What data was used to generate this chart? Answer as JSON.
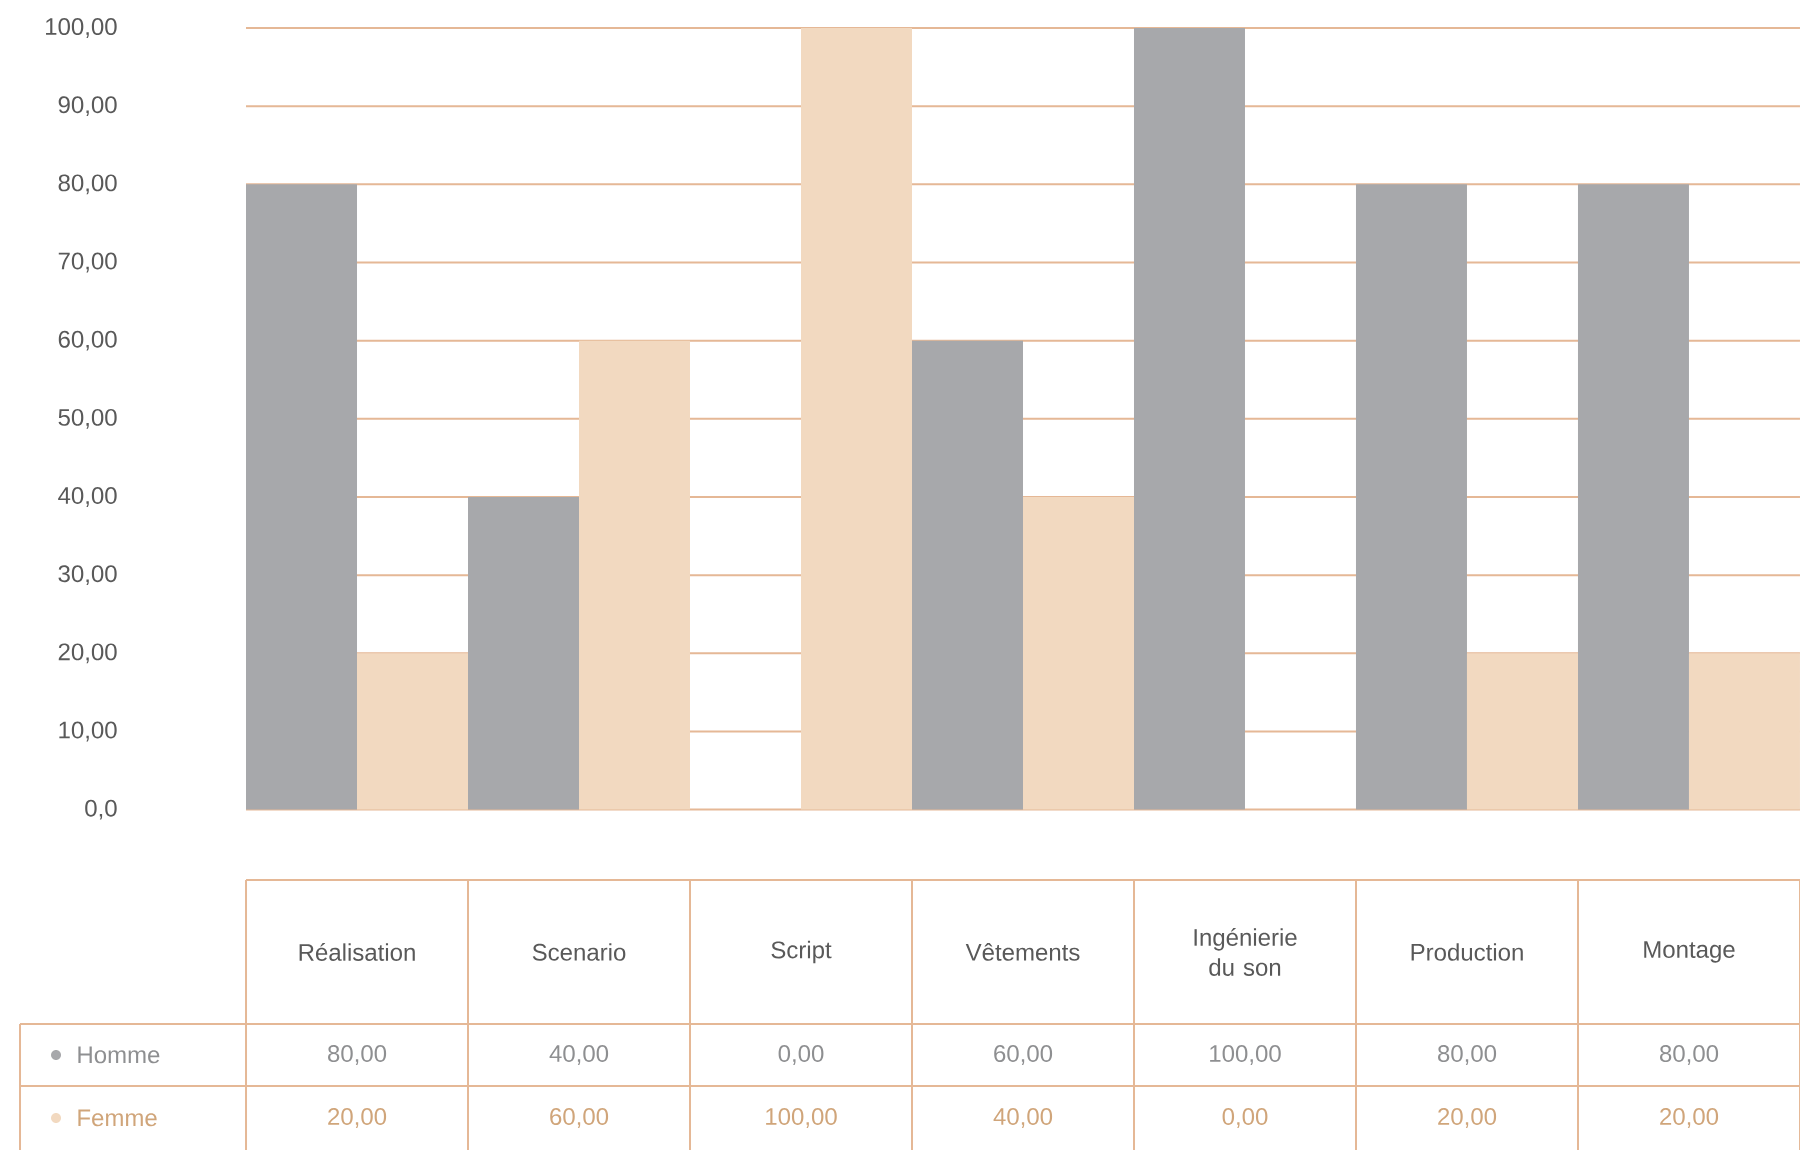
{
  "chart_data": {
    "type": "bar",
    "categories": [
      "Réalisation",
      "Scenario",
      "Script",
      "Vêtements",
      "Ingénierie du son",
      "Production",
      "Montage"
    ],
    "series": [
      {
        "name": "Homme",
        "color": "#a7a8ab",
        "values": [
          80,
          40,
          0,
          60,
          100,
          80,
          80
        ],
        "value_labels": [
          "80,00",
          "40,00",
          "0,00",
          "60,00",
          "100,00",
          "80,00",
          "80,00"
        ]
      },
      {
        "name": "Femme",
        "color": "#f2d9c0",
        "values": [
          20,
          60,
          100,
          40,
          0,
          20,
          20
        ],
        "value_labels": [
          "20,00",
          "60,00",
          "100,00",
          "40,00",
          "0,00",
          "20,00",
          "20,00"
        ]
      }
    ],
    "ylim": [
      -9,
      100
    ],
    "yticks": [
      {
        "value": 0,
        "label": "0,0"
      },
      {
        "value": 10,
        "label": "10,00"
      },
      {
        "value": 20,
        "label": "20,00"
      },
      {
        "value": 30,
        "label": "30,00"
      },
      {
        "value": 40,
        "label": "40,00"
      },
      {
        "value": 50,
        "label": "50,00"
      },
      {
        "value": 60,
        "label": "60,00"
      },
      {
        "value": 70,
        "label": "70,00"
      },
      {
        "value": 80,
        "label": "80,00"
      },
      {
        "value": 90,
        "label": "90,00"
      },
      {
        "value": 100,
        "label": "100,00"
      }
    ],
    "grid": "y",
    "legend": "bottom left"
  }
}
